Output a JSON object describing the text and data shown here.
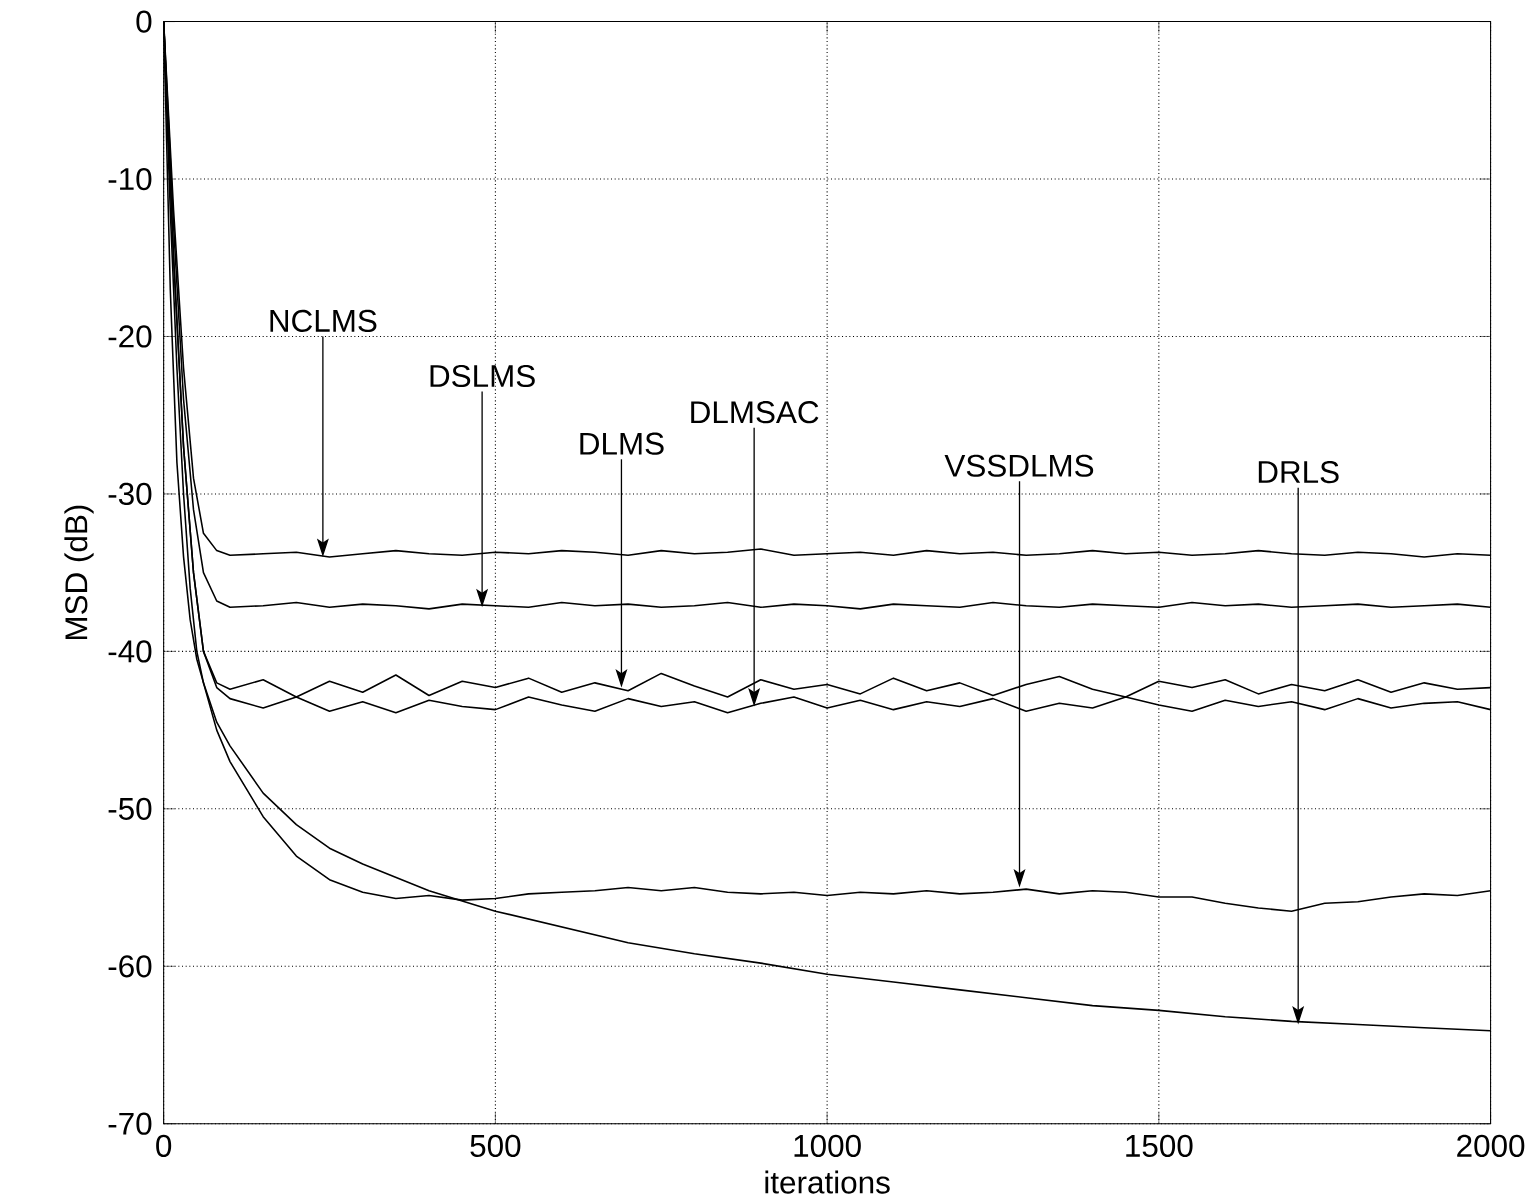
{
  "chart_data": {
    "type": "line",
    "xlabel": "iterations",
    "ylabel": "MSD (dB)",
    "xlim": [
      0,
      2000
    ],
    "ylim": [
      -70,
      0
    ],
    "xticks": [
      0,
      500,
      1000,
      1500,
      2000
    ],
    "yticks": [
      -70,
      -60,
      -50,
      -40,
      -30,
      -20,
      -10,
      0
    ],
    "grid": true,
    "marker": "none",
    "line_style": "solid",
    "series": [
      {
        "color": "#000000",
        "x": [
          0,
          15,
          30,
          45,
          60,
          80,
          100,
          150,
          200,
          250,
          300,
          350,
          400,
          450,
          500,
          550,
          600,
          650,
          700,
          750,
          800,
          850,
          900,
          950,
          1000,
          1050,
          1100,
          1150,
          1200,
          1250,
          1300,
          1350,
          1400,
          1450,
          1500,
          1550,
          1600,
          1650,
          1700,
          1750,
          1800,
          1850,
          1900,
          1950,
          2000
        ],
        "values": [
          0,
          -12,
          -22,
          -29,
          -32.5,
          -33.6,
          -33.9,
          -33.8,
          -33.7,
          -34.0,
          -33.8,
          -33.6,
          -33.8,
          -33.9,
          -33.7,
          -33.8,
          -33.6,
          -33.7,
          -33.9,
          -33.6,
          -33.8,
          -33.7,
          -33.5,
          -33.9,
          -33.8,
          -33.7,
          -33.9,
          -33.6,
          -33.8,
          -33.7,
          -33.9,
          -33.8,
          -33.6,
          -33.8,
          -33.7,
          -33.9,
          -33.8,
          -33.6,
          -33.8,
          -33.9,
          -33.7,
          -33.8,
          -34.0,
          -33.8,
          -33.9
        ]
      },
      {
        "color": "#000000",
        "x": [
          0,
          15,
          30,
          45,
          60,
          80,
          100,
          150,
          200,
          250,
          300,
          350,
          400,
          450,
          500,
          550,
          600,
          650,
          700,
          750,
          800,
          850,
          900,
          950,
          1000,
          1050,
          1100,
          1150,
          1200,
          1250,
          1300,
          1350,
          1400,
          1450,
          1500,
          1550,
          1600,
          1650,
          1700,
          1750,
          1800,
          1850,
          1900,
          1950,
          2000
        ],
        "values": [
          0,
          -13,
          -24,
          -31,
          -35,
          -36.8,
          -37.2,
          -37.1,
          -36.9,
          -37.2,
          -37.0,
          -37.1,
          -37.3,
          -37.0,
          -37.1,
          -37.2,
          -36.9,
          -37.1,
          -37.0,
          -37.2,
          -37.1,
          -36.9,
          -37.2,
          -37.0,
          -37.1,
          -37.3,
          -37.0,
          -37.1,
          -37.2,
          -36.9,
          -37.1,
          -37.2,
          -37.0,
          -37.1,
          -37.2,
          -36.9,
          -37.1,
          -37.0,
          -37.2,
          -37.1,
          -37.0,
          -37.2,
          -37.1,
          -37.0,
          -37.2
        ]
      },
      {
        "color": "#000000",
        "x": [
          0,
          15,
          30,
          45,
          60,
          80,
          100,
          150,
          200,
          250,
          300,
          350,
          400,
          450,
          500,
          550,
          600,
          650,
          700,
          750,
          800,
          850,
          900,
          950,
          1000,
          1050,
          1100,
          1150,
          1200,
          1250,
          1300,
          1350,
          1400,
          1450,
          1500,
          1550,
          1600,
          1650,
          1700,
          1750,
          1800,
          1850,
          1900,
          1950,
          2000
        ],
        "values": [
          0,
          -15,
          -27,
          -35,
          -40,
          -42,
          -42.4,
          -41.8,
          -42.9,
          -41.9,
          -42.6,
          -41.5,
          -42.8,
          -41.9,
          -42.3,
          -41.7,
          -42.6,
          -42.0,
          -42.5,
          -41.4,
          -42.2,
          -42.9,
          -41.8,
          -42.4,
          -42.1,
          -42.7,
          -41.7,
          -42.5,
          -42.0,
          -42.8,
          -42.1,
          -41.6,
          -42.4,
          -42.9,
          -41.9,
          -42.3,
          -41.8,
          -42.7,
          -42.1,
          -42.5,
          -41.8,
          -42.6,
          -42.0,
          -42.4,
          -42.3
        ]
      },
      {
        "color": "#000000",
        "x": [
          0,
          15,
          30,
          45,
          60,
          80,
          100,
          150,
          200,
          250,
          300,
          350,
          400,
          450,
          500,
          550,
          600,
          650,
          700,
          750,
          800,
          850,
          900,
          950,
          1000,
          1050,
          1100,
          1150,
          1200,
          1250,
          1300,
          1350,
          1400,
          1450,
          1500,
          1550,
          1600,
          1650,
          1700,
          1750,
          1800,
          1850,
          1900,
          1950,
          2000
        ],
        "values": [
          0,
          -15,
          -27,
          -35,
          -40,
          -42.3,
          -43.0,
          -43.6,
          -42.9,
          -43.8,
          -43.2,
          -43.9,
          -43.1,
          -43.5,
          -43.7,
          -42.9,
          -43.4,
          -43.8,
          -43.0,
          -43.5,
          -43.2,
          -43.9,
          -43.3,
          -42.9,
          -43.6,
          -43.1,
          -43.7,
          -43.2,
          -43.5,
          -43.0,
          -43.8,
          -43.3,
          -43.6,
          -42.9,
          -43.4,
          -43.8,
          -43.1,
          -43.5,
          -43.2,
          -43.7,
          -43.0,
          -43.6,
          -43.3,
          -43.2,
          -43.7
        ]
      },
      {
        "color": "#000000",
        "x": [
          0,
          10,
          20,
          30,
          40,
          50,
          60,
          80,
          100,
          150,
          200,
          250,
          300,
          350,
          400,
          450,
          500,
          550,
          600,
          650,
          700,
          750,
          800,
          850,
          900,
          950,
          1000,
          1050,
          1100,
          1150,
          1200,
          1250,
          1300,
          1350,
          1400,
          1450,
          1500,
          1550,
          1600,
          1650,
          1700,
          1750,
          1800,
          1850,
          1900,
          1950,
          2000
        ],
        "values": [
          0,
          -12,
          -22,
          -30,
          -36,
          -40,
          -42,
          -45,
          -47,
          -50.5,
          -53,
          -54.5,
          -55.3,
          -55.7,
          -55.5,
          -55.8,
          -55.7,
          -55.4,
          -55.3,
          -55.2,
          -55.0,
          -55.2,
          -55.0,
          -55.3,
          -55.4,
          -55.3,
          -55.5,
          -55.3,
          -55.4,
          -55.2,
          -55.4,
          -55.3,
          -55.1,
          -55.4,
          -55.2,
          -55.3,
          -55.6,
          -55.6,
          -56.0,
          -56.3,
          -56.5,
          -56.0,
          -55.9,
          -55.6,
          -55.4,
          -55.5,
          -55.2
        ]
      },
      {
        "color": "#000000",
        "x": [
          0,
          10,
          20,
          30,
          40,
          50,
          60,
          80,
          100,
          150,
          200,
          250,
          300,
          400,
          500,
          600,
          700,
          800,
          900,
          1000,
          1100,
          1200,
          1300,
          1400,
          1500,
          1600,
          1700,
          1800,
          1900,
          2000
        ],
        "values": [
          0,
          -17,
          -28,
          -34,
          -38,
          -40.5,
          -42,
          -44.5,
          -46,
          -49,
          -51,
          -52.5,
          -53.5,
          -55.2,
          -56.5,
          -57.5,
          -58.5,
          -59.2,
          -59.8,
          -60.5,
          -61,
          -61.5,
          -62,
          -62.5,
          -62.8,
          -63.2,
          -63.5,
          -63.7,
          -63.9,
          -64.1
        ]
      }
    ],
    "annotations": [
      {
        "text": "NCLMS",
        "x": 240,
        "y": -34
      },
      {
        "text": "DSLMS",
        "x": 480,
        "y": -37.2
      },
      {
        "text": "DLMS",
        "x": 690,
        "y": -42.3
      },
      {
        "text": "DLMSAC",
        "x": 890,
        "y": -43.5
      },
      {
        "text": "VSSDLMS",
        "x": 1290,
        "y": -55
      },
      {
        "text": "DRLS",
        "x": 1710,
        "y": -63.7
      }
    ]
  }
}
